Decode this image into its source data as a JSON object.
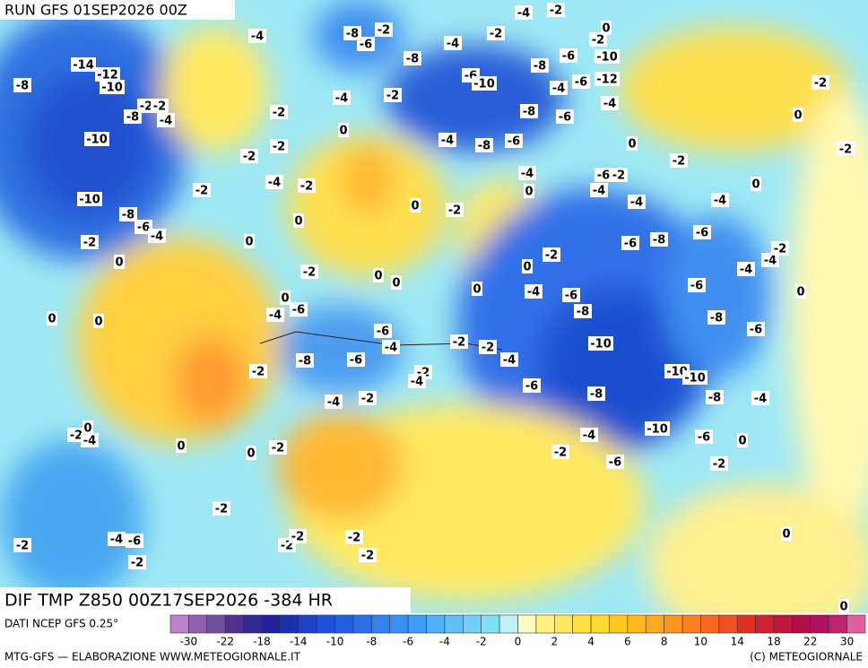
{
  "header": {
    "run": "RUN GFS 01SEP2026 00Z"
  },
  "map": {
    "title": "DIF TMP Z850 00Z17SEP2026 -384 HR",
    "labels": [
      -8,
      -14,
      -12,
      -10,
      -2,
      -2,
      -8,
      -4,
      -10,
      -10,
      -8,
      -6,
      -4,
      -2,
      0,
      0,
      0,
      -2,
      0,
      -4,
      0,
      -4,
      -6,
      -2,
      -2,
      -2,
      -2,
      0,
      -2,
      -2,
      -2,
      -2,
      -2,
      -8,
      -6,
      -4,
      -2,
      -2,
      -4,
      -4,
      -6,
      -4,
      -6,
      0,
      -2,
      0,
      0,
      0,
      -4,
      -6,
      -8,
      -2,
      -2,
      -4,
      -6,
      -10,
      -8,
      -4,
      -2,
      -6,
      -10,
      -6,
      0,
      -2,
      -8,
      -4,
      -10,
      -10,
      -8,
      -6,
      -6,
      -4,
      -4,
      -2,
      0,
      -6,
      -8,
      -6,
      -4,
      -4,
      0,
      -2,
      -2,
      -2,
      0,
      0,
      -4,
      -6,
      -2,
      -2,
      0,
      -2,
      0,
      0,
      -4,
      -6,
      -8,
      -4,
      -6,
      -8,
      -4,
      -12,
      -10,
      -6,
      -6,
      -4,
      -2,
      0,
      -8,
      -2,
      -4,
      -8,
      -6,
      -10,
      -4,
      -2,
      0,
      -2,
      -2,
      -2,
      -4,
      -2,
      0,
      0,
      -2,
      -4,
      -8,
      -6,
      -2,
      -4,
      -2,
      0,
      0
    ]
  },
  "colorbar": {
    "source": "DATI NCEP GFS 0.25°",
    "colors": [
      "#c080d0",
      "#9060b0",
      "#7050a0",
      "#503090",
      "#302890",
      "#2020a0",
      "#1830b0",
      "#1c40c8",
      "#2050d8",
      "#2060e0",
      "#2870e8",
      "#3080f0",
      "#3890f0",
      "#40a0f8",
      "#50b0f8",
      "#60c0f8",
      "#70d0f8",
      "#80e0f8",
      "#c0f0f8",
      "#fffac0",
      "#fff080",
      "#ffe860",
      "#ffe040",
      "#ffd830",
      "#ffc820",
      "#ffb820",
      "#ffa820",
      "#ff9820",
      "#ff8020",
      "#f86820",
      "#f05020",
      "#e03020",
      "#d02030",
      "#c01838",
      "#b01048",
      "#b01060",
      "#c02070",
      "#e060a0"
    ],
    "ticks": [
      -30,
      -22,
      -18,
      -14,
      -10,
      -8,
      -6,
      -4,
      -2,
      0,
      2,
      4,
      6,
      8,
      10,
      14,
      18,
      22,
      30
    ]
  },
  "footer": {
    "left": "MTG-GFS — ELABORAZIONE WWW.METEOGIORNALE.IT",
    "right": "(C) METEOGIORNALE"
  }
}
